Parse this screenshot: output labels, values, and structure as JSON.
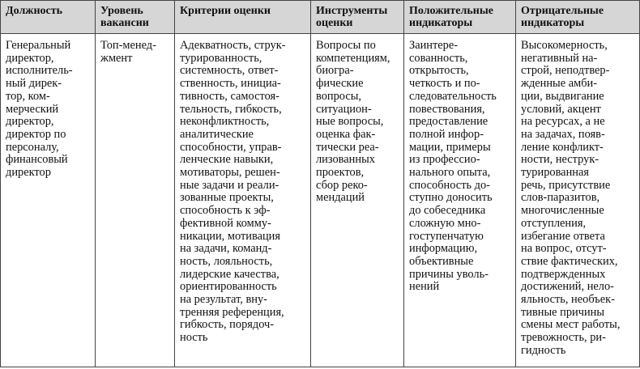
{
  "table": {
    "header": [
      [
        "Должность"
      ],
      [
        "Уровень",
        "вакансии"
      ],
      [
        "Критерии оценки"
      ],
      [
        "Инструменты",
        "оценки"
      ],
      [
        "Положительные",
        "индикаторы"
      ],
      [
        "Отрицательные",
        "индикаторы"
      ]
    ],
    "rows": [
      [
        [
          "Генеральный",
          "директор,",
          "исполнитель-",
          "ный дирек-",
          "тор, ком-",
          "мерческий",
          "директор,",
          "директор по",
          "персоналу,",
          "финансовый",
          "директор"
        ],
        [
          "Топ-менед-",
          "жмент"
        ],
        [
          "Адекватность, струк-",
          "турированность,",
          "системность, ответ-",
          "ственность, инициа-",
          "тивность, самостоя-",
          "тельность, гибкость,",
          "неконфликтность,",
          "аналитические",
          "способности, управ-",
          "ленческие навыки,",
          "мотиваторы, решен-",
          "ные задачи и реали-",
          "зованные проекты,",
          "способность к эф-",
          "фективной комму-",
          "никации, мотивация",
          "на задачи, команд-",
          "ность, лояльность,",
          "лидерские качества,",
          "ориентированность",
          "на результат, вну-",
          "тренняя референция,",
          "гибкость, порядоч-",
          "ность"
        ],
        [
          "Вопросы по",
          "компетенциям,",
          "биогра-",
          "фические",
          "вопросы,",
          "ситуацион-",
          "ные вопросы,",
          "оценка фак-",
          "тически реа-",
          "лизованных",
          "проектов,",
          "сбор реко-",
          "мендаций"
        ],
        [
          "Заинтере-",
          "сованность,",
          "открытость,",
          "четкость и по-",
          "следовательность",
          "повествования,",
          "предоставление",
          "полной инфор-",
          "мации, примеры",
          "из профессио-",
          "нального опыта,",
          "способность до-",
          "ступно доносить",
          "до собеседника",
          "сложную мно-",
          "гоступенчатую",
          "информацию,",
          "объективные",
          "причины уволь-",
          "нений"
        ],
        [
          "Высокомерность,",
          "негативный на-",
          "строй, неподтвер-",
          "жденные амби-",
          "ции, выдвигание",
          "условий, акцент",
          "на ресурсах, а не",
          "на задачах, появ-",
          "ление конфликт-",
          "ности, неструк-",
          "турированная",
          "речь, присутствие",
          "слов-паразитов,",
          "многочисленные",
          "отступления,",
          "избегание ответа",
          "на вопрос, отсут-",
          "ствие фактических,",
          "подтвержденных",
          "достижений, нело-",
          "яльность, необъек-",
          "тивные причины",
          "смены мест работы,",
          "тревожность, ри-",
          "гидность"
        ]
      ]
    ]
  }
}
